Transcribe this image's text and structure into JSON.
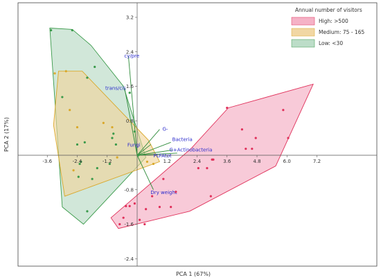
{
  "chart_data": {
    "type": "scatter",
    "title": "",
    "xlabel": "PCA 1 (67%)",
    "ylabel": "PCA 2 (17%)",
    "xlim": [
      -3.9,
      8.1
    ],
    "ylim": [
      -2.55,
      3.5
    ],
    "x_ticks": [
      -3.6,
      -2.4,
      -1.2,
      1.2,
      2.4,
      3.6,
      4.8,
      6.0,
      7.2
    ],
    "x_tick_labels": [
      "-3.6",
      "-2.4",
      "-1.2",
      "1.2",
      "2.4",
      "3.6",
      "4.8",
      "6.0",
      "7.2"
    ],
    "y_ticks": [
      3.2,
      2.4,
      1.6,
      0.8,
      -0.8,
      -1.6,
      -2.4
    ],
    "y_tick_labels": [
      "3.2",
      "2.4",
      "1.6",
      "0.8",
      "-0.8",
      "-1.6",
      "-2.4"
    ],
    "grid": false,
    "legend": {
      "title": "Annual number of visitors",
      "placement": "top-right",
      "entries": [
        "High: >500",
        "Medium: 75 - 165",
        "Low: <30"
      ]
    },
    "series": [
      {
        "name": "High: >500",
        "color": "#e0305a",
        "fill": "#f4aac0",
        "hull": [
          [
            -1.05,
            -1.45
          ],
          [
            -0.75,
            -1.7
          ],
          [
            2.1,
            -1.3
          ],
          [
            5.55,
            -0.25
          ],
          [
            7.05,
            1.65
          ],
          [
            3.65,
            1.1
          ],
          [
            2.15,
            0.15
          ]
        ],
        "points": [
          [
            -0.7,
            -1.6
          ],
          [
            -0.55,
            -1.45
          ],
          [
            -0.45,
            -1.18
          ],
          [
            -0.3,
            -1.18
          ],
          [
            -0.1,
            -1.12
          ],
          [
            0.1,
            -1.5
          ],
          [
            0.3,
            -1.6
          ],
          [
            0.35,
            -1.25
          ],
          [
            0.6,
            -0.95
          ],
          [
            0.9,
            -1.2
          ],
          [
            1.05,
            -0.55
          ],
          [
            1.35,
            -1.2
          ],
          [
            1.55,
            -0.85
          ],
          [
            2.45,
            -0.3
          ],
          [
            2.8,
            -0.3
          ],
          [
            2.95,
            -0.95
          ],
          [
            3.0,
            -0.1
          ],
          [
            3.05,
            -0.1
          ],
          [
            3.6,
            1.1
          ],
          [
            4.2,
            0.6
          ],
          [
            4.35,
            0.15
          ],
          [
            4.6,
            0.15
          ],
          [
            4.75,
            0.4
          ],
          [
            5.85,
            1.05
          ],
          [
            6.05,
            0.4
          ]
        ]
      },
      {
        "name": "Medium: 75 - 165",
        "color": "#d9a82a",
        "fill": "#f0d39a",
        "hull": [
          [
            -3.35,
            0.7
          ],
          [
            -3.15,
            1.95
          ],
          [
            -2.2,
            1.95
          ],
          [
            0.45,
            0.35
          ],
          [
            0.9,
            -0.15
          ],
          [
            -2.9,
            -0.95
          ]
        ],
        "points": [
          [
            -3.3,
            1.9
          ],
          [
            -2.85,
            1.95
          ],
          [
            -2.7,
            1.05
          ],
          [
            -2.55,
            -0.35
          ],
          [
            -2.4,
            0.65
          ],
          [
            -1.35,
            0.75
          ],
          [
            -1.0,
            0.65
          ],
          [
            -0.8,
            -0.05
          ],
          [
            0.4,
            -0.15
          ],
          [
            0.65,
            -0.2
          ]
        ]
      },
      {
        "name": "Low: <30",
        "color": "#3a9a4a",
        "fill": "#b5d9c2",
        "hull": [
          [
            -3.5,
            2.95
          ],
          [
            -2.6,
            2.92
          ],
          [
            -1.85,
            2.55
          ],
          [
            -0.55,
            1.6
          ],
          [
            0.35,
            -0.05
          ],
          [
            -2.15,
            -1.6
          ],
          [
            -3.0,
            -1.2
          ]
        ],
        "points": [
          [
            -3.45,
            2.9
          ],
          [
            -3.0,
            1.35
          ],
          [
            -2.6,
            2.9
          ],
          [
            -2.4,
            0.25
          ],
          [
            -2.35,
            -0.5
          ],
          [
            -2.3,
            -0.2
          ],
          [
            -2.25,
            -0.15
          ],
          [
            -2.1,
            0.3
          ],
          [
            -2.0,
            1.8
          ],
          [
            -2.0,
            -1.3
          ],
          [
            -1.8,
            -0.55
          ],
          [
            -1.7,
            2.05
          ],
          [
            -1.6,
            -0.3
          ],
          [
            -1.1,
            -0.2
          ],
          [
            -1.0,
            0.4
          ],
          [
            -0.95,
            0.5
          ],
          [
            -0.85,
            0.25
          ],
          [
            -0.3,
            1.45
          ],
          [
            -0.1,
            0.55
          ],
          [
            0.05,
            0.0
          ]
        ]
      }
    ],
    "loadings": [
      {
        "label": "cy/pre",
        "x": -0.35,
        "y": 2.3
      },
      {
        "label": "trans/cis",
        "x": -0.5,
        "y": 1.55
      },
      {
        "label": "G-",
        "x": 0.9,
        "y": 0.6
      },
      {
        "label": "Fungi",
        "x": 0.55,
        "y": 0.25
      },
      {
        "label": "Bacteria",
        "x": 1.35,
        "y": 0.3
      },
      {
        "label": "G+Actinobacteria",
        "x": 1.4,
        "y": 0.12
      },
      {
        "label": "PLFAtot",
        "x": 1.6,
        "y": 0.05
      },
      {
        "label": "Dry weight",
        "x": 0.65,
        "y": -0.8
      }
    ]
  }
}
